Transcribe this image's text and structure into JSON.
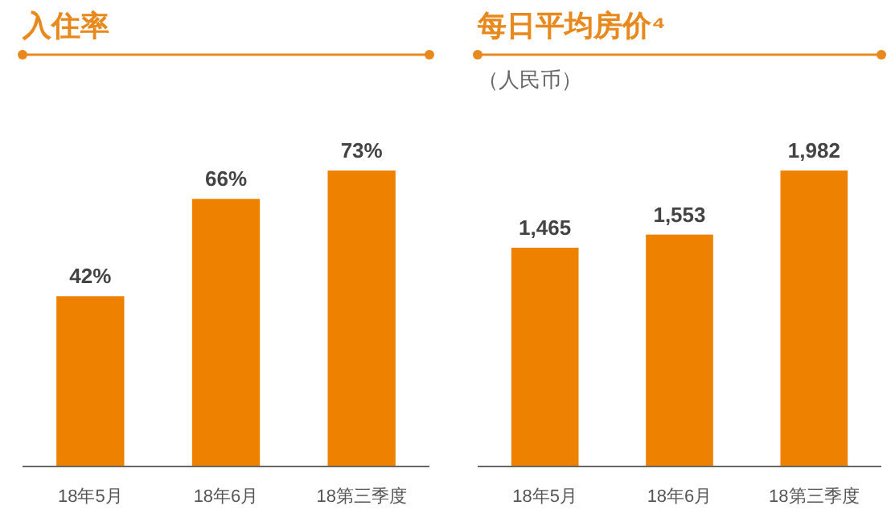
{
  "chart_data": [
    {
      "type": "bar",
      "title": "入住率",
      "categories": [
        "18年5月",
        "18年6月",
        "18第三季度"
      ],
      "values": [
        42,
        66,
        73
      ],
      "value_labels": [
        "42%",
        "66%",
        "73%"
      ],
      "color": "#ee8100"
    },
    {
      "type": "bar",
      "title": "每日平均房价⁴",
      "subtitle": "（人民币）",
      "categories": [
        "18年5月",
        "18年6月",
        "18第三季度"
      ],
      "values": [
        1465,
        1553,
        1982
      ],
      "value_labels": [
        "1,465",
        "1,553",
        "1,982"
      ],
      "color": "#ee8100"
    }
  ]
}
